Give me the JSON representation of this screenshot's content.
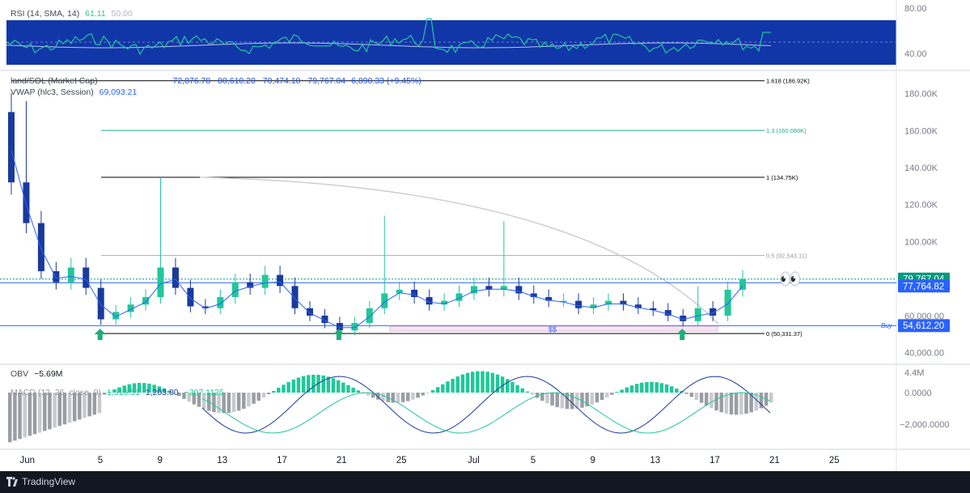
{
  "rsi": {
    "title": "RSI (14, SMA, 14)",
    "value": "61.11",
    "sma_value": "50.00",
    "axis_labels": [
      "80.00",
      "40.00"
    ],
    "band_color": "#1136a8"
  },
  "main": {
    "title": "land/SOL (Market Cap)",
    "ohlc": [
      "72,876.78",
      "80,610.20",
      "70,474.10",
      "79,767.04",
      "6,890.33 (+9.45%)"
    ],
    "vwap_label": "VWAP (hlc3, Session)",
    "vwap_value": "69,093.21",
    "price_axis": [
      "180.00K",
      "160.00K",
      "140.00K",
      "120.00K",
      "100.00K",
      "60,000.00",
      "40,000.00"
    ],
    "fib_levels": [
      {
        "label": "1.618 (186.92K)",
        "value": 186920,
        "color": "#000000"
      },
      {
        "label": "1.3 (160.080K)",
        "value": 160080,
        "color": "#22ab94"
      },
      {
        "label": "1 (134.75K)",
        "value": 134750,
        "color": "#000000"
      },
      {
        "label": "0.5 (92,543.11)",
        "value": 92543,
        "color": "#9598a1"
      },
      {
        "label": "0 (50,331.37)",
        "value": 50331,
        "color": "#000000"
      }
    ],
    "price_badges": [
      {
        "label": "79,767.04",
        "value": 79767,
        "color": "#089981"
      },
      {
        "label": "77,764.82",
        "value": 77764,
        "color": "#2962ff"
      },
      {
        "label": "54,612.20",
        "value": 54612,
        "color": "#2962ff"
      }
    ],
    "buy_label": "Buy",
    "range_label": "$$",
    "emoji": "👀",
    "up_color": "#22c79a",
    "down_color": "#1a3a9c"
  },
  "obv": {
    "title": "OBV",
    "value": "−5.69M",
    "axis_label": "4.4M"
  },
  "macd": {
    "title": "MACD (12, 26, close, 9)",
    "values": [
      "1,516.51",
      "1,203.80",
      "−307.1125"
    ],
    "axis_labels": [
      "0.0000",
      "−2,000.0000"
    ]
  },
  "x_axis_labels": [
    "Jun",
    "5",
    "9",
    "13",
    "17",
    "21",
    "25",
    "Jul",
    "5",
    "9",
    "13",
    "17",
    "21",
    "25"
  ],
  "footer": {
    "brand": "TradingView"
  },
  "chart_data": {
    "type": "candlestick",
    "title": "land/SOL (Market Cap)",
    "x_axis_ticks": [
      "Jun",
      "5",
      "9",
      "13",
      "17",
      "21",
      "25",
      "Jul",
      "5",
      "9",
      "13",
      "17",
      "21",
      "25"
    ],
    "ylim": [
      40000,
      190000
    ],
    "series": [
      {
        "name": "VWAP (hlc3, Session)",
        "last": 69093.21
      },
      {
        "name": "OHLC last",
        "open": 72876.78,
        "high": 80610.2,
        "low": 70474.1,
        "close": 79767.04
      }
    ],
    "fib_retracement": [
      {
        "level": "1.618",
        "value": 186920
      },
      {
        "level": "1.3",
        "value": 160080
      },
      {
        "level": "1",
        "value": 134750
      },
      {
        "level": "0.5",
        "value": 92543.11
      },
      {
        "level": "0",
        "value": 50331.37
      }
    ],
    "horizontal_lines": [
      77764.82,
      54612.2
    ],
    "arrows_up_at_x": [
      "Jun 6",
      "Jun 22",
      "Jul 15"
    ],
    "approx_close_path": [
      {
        "x": "May 31",
        "close": 132000
      },
      {
        "x": "Jun 1",
        "close": 110000
      },
      {
        "x": "Jun 2",
        "close": 84000
      },
      {
        "x": "Jun 3",
        "close": 78000
      },
      {
        "x": "Jun 4",
        "close": 86000
      },
      {
        "x": "Jun 5",
        "close": 75000
      },
      {
        "x": "Jun 6",
        "close": 58000
      },
      {
        "x": "Jun 7",
        "close": 62000
      },
      {
        "x": "Jun 8",
        "close": 66000
      },
      {
        "x": "Jun 9",
        "close": 70000
      },
      {
        "x": "Jun 10",
        "close": 86000
      },
      {
        "x": "Jun 11",
        "close": 75000
      },
      {
        "x": "Jun 12",
        "close": 65000
      },
      {
        "x": "Jun 13",
        "close": 64000
      },
      {
        "x": "Jun 14",
        "close": 70000
      },
      {
        "x": "Jun 15",
        "close": 78000
      },
      {
        "x": "Jun 16",
        "close": 75000
      },
      {
        "x": "Jun 17",
        "close": 82000
      },
      {
        "x": "Jun 18",
        "close": 76000
      },
      {
        "x": "Jun 19",
        "close": 64000
      },
      {
        "x": "Jun 20",
        "close": 60000
      },
      {
        "x": "Jun 21",
        "close": 56000
      },
      {
        "x": "Jun 22",
        "close": 52000
      },
      {
        "x": "Jun 23",
        "close": 56000
      },
      {
        "x": "Jun 24",
        "close": 64000
      },
      {
        "x": "Jun 25",
        "close": 72000
      },
      {
        "x": "Jun 26",
        "close": 74000
      },
      {
        "x": "Jun 27",
        "close": 70000
      },
      {
        "x": "Jun 28",
        "close": 66000
      },
      {
        "x": "Jun 29",
        "close": 68000
      },
      {
        "x": "Jun 30",
        "close": 72000
      },
      {
        "x": "Jul 1",
        "close": 76000
      },
      {
        "x": "Jul 2",
        "close": 74000
      },
      {
        "x": "Jul 3",
        "close": 76000
      },
      {
        "x": "Jul 4",
        "close": 72000
      },
      {
        "x": "Jul 5",
        "close": 70000
      },
      {
        "x": "Jul 6",
        "close": 68000
      },
      {
        "x": "Jul 7",
        "close": 68000
      },
      {
        "x": "Jul 8",
        "close": 64000
      },
      {
        "x": "Jul 9",
        "close": 66000
      },
      {
        "x": "Jul 10",
        "close": 68000
      },
      {
        "x": "Jul 11",
        "close": 66000
      },
      {
        "x": "Jul 12",
        "close": 64000
      },
      {
        "x": "Jul 13",
        "close": 63000
      },
      {
        "x": "Jul 14",
        "close": 60000
      },
      {
        "x": "Jul 15",
        "close": 57000
      },
      {
        "x": "Jul 16",
        "close": 64000
      },
      {
        "x": "Jul 17",
        "close": 60000
      },
      {
        "x": "Jul 18",
        "close": 74000
      },
      {
        "x": "Jul 19",
        "close": 79767
      }
    ]
  }
}
